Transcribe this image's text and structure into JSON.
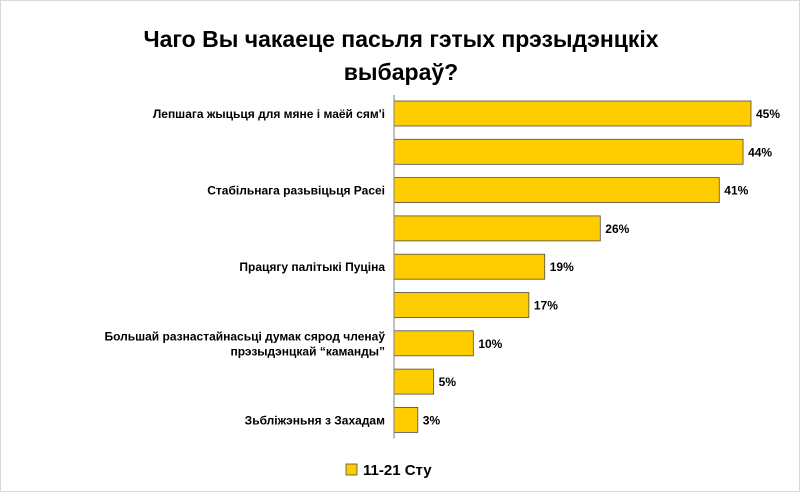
{
  "chart_data": {
    "type": "bar",
    "orientation": "horizontal",
    "title_lines": [
      "Чаго Вы чакаеце пасьля гэтых прэзыдэнцкіх",
      "выбараў?"
    ],
    "categories": [
      [
        "Лепшага жыцьця для мяне і маёй сям'і"
      ],
      [],
      [
        "Стабільнага разьвіцьця Расеі"
      ],
      [],
      [
        "Працягу палітыкі Пуціна"
      ],
      [],
      [
        "Большай разнастайнасьці думак сярод членаў",
        "прэзыдэнцкай “каманды”"
      ],
      [],
      [
        "Зьбліжэньня з Захадам"
      ]
    ],
    "series": [
      {
        "name": "11-21 Сту",
        "values": [
          45,
          44,
          41,
          26,
          19,
          17,
          10,
          5,
          3
        ],
        "value_labels": [
          "45%",
          "44%",
          "41%",
          "26%",
          "19%",
          "17%",
          "10%",
          "5%",
          "3%"
        ]
      }
    ],
    "unit": "%",
    "xlim": [
      0,
      45
    ],
    "grid": false,
    "legend_position": "bottom",
    "colors": {
      "bar_fill": "#FFCC00",
      "bar_stroke": "#4D4D4D",
      "axis": "#808080",
      "text": "#000000"
    }
  }
}
